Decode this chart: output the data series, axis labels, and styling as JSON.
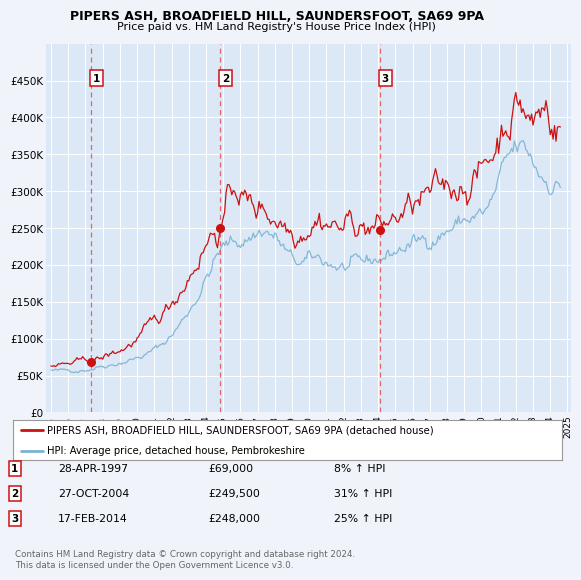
{
  "title": "PIPERS ASH, BROADFIELD HILL, SAUNDERSFOOT, SA69 9PA",
  "subtitle": "Price paid vs. HM Land Registry's House Price Index (HPI)",
  "bg_color": "#f0f4fa",
  "plot_bg_color": "#dce8f5",
  "legend_label_red": "PIPERS ASH, BROADFIELD HILL, SAUNDERSFOOT, SA69 9PA (detached house)",
  "legend_label_blue": "HPI: Average price, detached house, Pembrokeshire",
  "footer1": "Contains HM Land Registry data © Crown copyright and database right 2024.",
  "footer2": "This data is licensed under the Open Government Licence v3.0.",
  "transactions": [
    {
      "label": "1",
      "date_num": 1997.32,
      "price": 69000,
      "pct": "8% ↑ HPI",
      "date_str": "28-APR-1997"
    },
    {
      "label": "2",
      "date_num": 2004.82,
      "price": 249500,
      "pct": "31% ↑ HPI",
      "date_str": "27-OCT-2004"
    },
    {
      "label": "3",
      "date_num": 2014.12,
      "price": 248000,
      "pct": "25% ↑ HPI",
      "date_str": "17-FEB-2014"
    }
  ],
  "xlim": [
    1994.7,
    2025.2
  ],
  "ylim": [
    0,
    500000
  ],
  "yticks": [
    0,
    50000,
    100000,
    150000,
    200000,
    250000,
    300000,
    350000,
    400000,
    450000
  ],
  "xticks": [
    1995,
    1996,
    1997,
    1998,
    1999,
    2000,
    2001,
    2002,
    2003,
    2004,
    2005,
    2006,
    2007,
    2008,
    2009,
    2010,
    2011,
    2012,
    2013,
    2014,
    2015,
    2016,
    2017,
    2018,
    2019,
    2020,
    2021,
    2022,
    2023,
    2024,
    2025
  ]
}
